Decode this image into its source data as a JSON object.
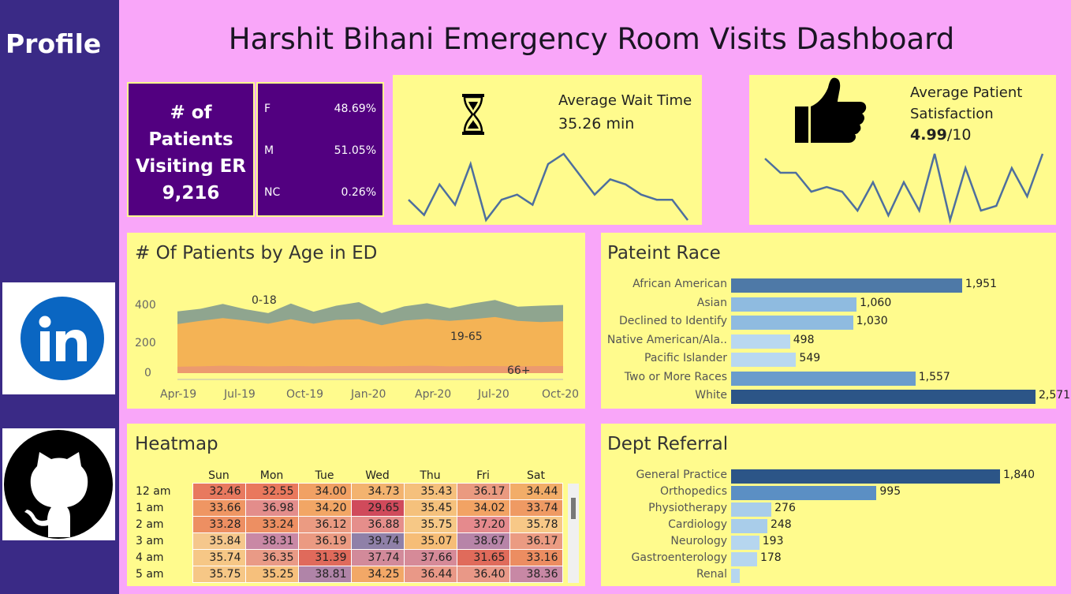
{
  "sidebar": {
    "profile": "Profile"
  },
  "dashboard": {
    "title": "Harshit Bihani Emergency Room Visits Dashboard"
  },
  "kpi": {
    "patients_line1": "# of",
    "patients_line2": "Patients",
    "patients_line3": "Visiting ER",
    "patients_value": "9,216",
    "gender": [
      {
        "label": "F",
        "value": "48.69%"
      },
      {
        "label": "M",
        "value": "51.05%"
      },
      {
        "label": "NC",
        "value": "0.26%"
      }
    ],
    "wait": {
      "label": "Average Wait Time",
      "value": "35.26",
      "unit": " min"
    },
    "satisfaction": {
      "label1": "Average Patient",
      "label2": "Satisfaction",
      "value": "4.99",
      "unit": "/10"
    }
  },
  "age_chart": {
    "title": "# Of Patients by Age in ED",
    "y_ticks": [
      "400",
      "200",
      "0"
    ],
    "x_ticks": [
      "Apr-19",
      "Jul-19",
      "Oct-19",
      "Jan-20",
      "Apr-20",
      "Jul-20",
      "Oct-20"
    ],
    "labels": [
      "0-18",
      "19-65",
      "66+"
    ]
  },
  "race_chart": {
    "title": "Pateint Race",
    "bars": [
      {
        "label": "African American",
        "value": "1,951",
        "n": 1951,
        "color": "#4e79a7"
      },
      {
        "label": "Asian",
        "value": "1,060",
        "n": 1060,
        "color": "#8fbbe0"
      },
      {
        "label": "Declined to Identify",
        "value": "1,030",
        "n": 1030,
        "color": "#8fbbe0"
      },
      {
        "label": "Native American/Ala..",
        "value": "498",
        "n": 498,
        "color": "#b9d8f0"
      },
      {
        "label": "Pacific Islander",
        "value": "549",
        "n": 549,
        "color": "#b9d8f0"
      },
      {
        "label": "Two or More Races",
        "value": "1,557",
        "n": 1557,
        "color": "#6a9ccc"
      },
      {
        "label": "White",
        "value": "2,571",
        "n": 2571,
        "color": "#2c5587"
      }
    ]
  },
  "dept_chart": {
    "title": "Dept Referral",
    "bars": [
      {
        "label": "General Practice",
        "value": "1,840",
        "n": 1840,
        "color": "#2c5587"
      },
      {
        "label": "Orthopedics",
        "value": "995",
        "n": 995,
        "color": "#5b8fc4"
      },
      {
        "label": "Physiotherapy",
        "value": "276",
        "n": 276,
        "color": "#a9cdea"
      },
      {
        "label": "Cardiology",
        "value": "248",
        "n": 248,
        "color": "#a9cdea"
      },
      {
        "label": "Neurology",
        "value": "193",
        "n": 193,
        "color": "#b6d6ef"
      },
      {
        "label": "Gastroenterology",
        "value": "178",
        "n": 178,
        "color": "#b6d6ef"
      },
      {
        "label": "Renal",
        "value": "",
        "n": 60,
        "color": "#b6d6ef"
      }
    ]
  },
  "heatmap": {
    "title": "Heatmap",
    "days": [
      "Sun",
      "Mon",
      "Tue",
      "Wed",
      "Thu",
      "Fri",
      "Sat"
    ],
    "rows": [
      {
        "hour": "12 am",
        "vals": [
          "32.46",
          "32.55",
          "34.00",
          "34.73",
          "35.43",
          "36.17",
          "34.44"
        ],
        "colors": [
          "#e8795f",
          "#e9785d",
          "#f1a164",
          "#f3b36f",
          "#f5c07c",
          "#ea9a80",
          "#f2ad68"
        ]
      },
      {
        "hour": "1 am",
        "vals": [
          "33.66",
          "36.98",
          "34.20",
          "29.65",
          "35.45",
          "34.02",
          "33.74"
        ],
        "colors": [
          "#ef9663",
          "#e38d8b",
          "#f2a665",
          "#d04a5b",
          "#f5c17c",
          "#f2a364",
          "#ef9a63"
        ]
      },
      {
        "hour": "2 am",
        "vals": [
          "33.28",
          "33.24",
          "36.12",
          "36.88",
          "35.75",
          "37.20",
          "35.78"
        ],
        "colors": [
          "#ed8f62",
          "#ed8f62",
          "#eb9b82",
          "#e58e8b",
          "#f6c886",
          "#e58a8d",
          "#f7c887"
        ]
      },
      {
        "hour": "3 am",
        "vals": [
          "35.84",
          "38.31",
          "36.19",
          "39.74",
          "35.07",
          "38.67",
          "36.17"
        ],
        "colors": [
          "#f5c78c",
          "#c988a5",
          "#eb9a82",
          "#8f80a8",
          "#f6bd77",
          "#b784a8",
          "#eb9b82"
        ]
      },
      {
        "hour": "4 am",
        "vals": [
          "35.74",
          "36.35",
          "31.39",
          "37.74",
          "37.66",
          "31.65",
          "33.16"
        ],
        "colors": [
          "#f6c786",
          "#e99a86",
          "#e06a5b",
          "#d28a9a",
          "#d68a98",
          "#e06b5b",
          "#ec8d61"
        ]
      },
      {
        "hour": "5 am",
        "vals": [
          "35.75",
          "35.25",
          "38.81",
          "34.25",
          "36.44",
          "36.40",
          "38.36"
        ],
        "colors": [
          "#f6c786",
          "#f6c07c",
          "#b084a8",
          "#f2a867",
          "#e99887",
          "#e99887",
          "#c888a5"
        ]
      }
    ]
  },
  "sparklines": {
    "wait_values": [
      37,
      34,
      40,
      36,
      44,
      33,
      37,
      38,
      36,
      44,
      46,
      42,
      38,
      41,
      40,
      38,
      37,
      37,
      33
    ],
    "sat_values": [
      5.4,
      5.1,
      5.1,
      4.7,
      4.8,
      4.7,
      4.3,
      4.9,
      4.2,
      4.9,
      4.3,
      5.5,
      4.1,
      5.2,
      4.3,
      4.4,
      5.2,
      4.6,
      5.5
    ]
  },
  "age_series": {
    "kids": [
      90,
      85,
      100,
      80,
      75,
      110,
      85,
      100,
      120,
      85,
      100,
      110,
      90,
      110,
      120,
      100,
      115,
      115
    ],
    "adults": [
      300,
      320,
      335,
      320,
      300,
      330,
      300,
      325,
      330,
      290,
      320,
      330,
      320,
      330,
      345,
      320,
      310,
      315
    ],
    "seniors": [
      45,
      48,
      52,
      50,
      48,
      50,
      48,
      50,
      50,
      48,
      50,
      52,
      48,
      50,
      50,
      48,
      50,
      50
    ]
  }
}
